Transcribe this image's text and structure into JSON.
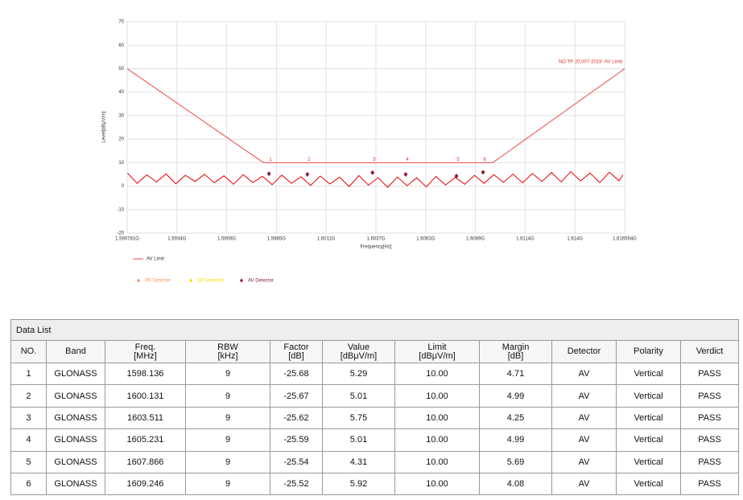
{
  "chart_data": {
    "type": "line",
    "ylabel": "Level[dBμV/m]",
    "xlabel": "Frequency[Hz]",
    "annotation": "NO TP 20.007-2019 -AV Limit",
    "xlim": [
      1.590781,
      1.616594
    ],
    "ylim": [
      -20,
      70
    ],
    "yticks": [
      -20,
      -10,
      0,
      10,
      20,
      30,
      40,
      50,
      60,
      70
    ],
    "xticks": [
      {
        "value": 1.590781,
        "label": "1.590781G"
      },
      {
        "value": 1.593362,
        "label": "1.5934G"
      },
      {
        "value": 1.595943,
        "label": "1.5959G"
      },
      {
        "value": 1.598525,
        "label": "1.5985G"
      },
      {
        "value": 1.601106,
        "label": "1.6011G"
      },
      {
        "value": 1.603688,
        "label": "1.6037G"
      },
      {
        "value": 1.606269,
        "label": "1.6063G"
      },
      {
        "value": 1.60885,
        "label": "1.6089G"
      },
      {
        "value": 1.611431,
        "label": "1.6114G"
      },
      {
        "value": 1.614013,
        "label": "1.614G"
      },
      {
        "value": 1.616594,
        "label": "1.616594G"
      }
    ],
    "grid": true,
    "limit": {
      "name": "AV Limit",
      "color": "#f04848",
      "x": [
        1.590781,
        1.59785,
        1.60975,
        1.616594
      ],
      "values": [
        50,
        10,
        10,
        50
      ]
    },
    "trace": {
      "color": "#e60000",
      "x": [
        1.5908,
        1.5913,
        1.5918,
        1.5923,
        1.5928,
        1.5933,
        1.5938,
        1.5943,
        1.5948,
        1.5953,
        1.5958,
        1.5963,
        1.5968,
        1.5973,
        1.5978,
        1.5983,
        1.5988,
        1.5993,
        1.5998,
        1.6003,
        1.6008,
        1.6013,
        1.6018,
        1.6023,
        1.6028,
        1.6033,
        1.6038,
        1.6043,
        1.6048,
        1.6053,
        1.6058,
        1.6063,
        1.6068,
        1.6073,
        1.6078,
        1.6083,
        1.6088,
        1.6093,
        1.6098,
        1.6103,
        1.6108,
        1.6113,
        1.6118,
        1.6123,
        1.6128,
        1.6133,
        1.6138,
        1.6143,
        1.6148,
        1.6153,
        1.6158,
        1.6163,
        1.6165
      ],
      "values": [
        5.5,
        1.2,
        4.8,
        1.8,
        5.2,
        1.0,
        4.6,
        2.0,
        5.0,
        1.4,
        4.4,
        0.8,
        4.9,
        1.5,
        4.2,
        0.6,
        4.7,
        1.2,
        4.0,
        0.3,
        4.3,
        0.9,
        3.8,
        -0.2,
        4.5,
        0.4,
        3.6,
        -0.5,
        3.9,
        0.2,
        3.5,
        -0.3,
        4.1,
        0.5,
        3.7,
        0.8,
        4.6,
        1.2,
        4.9,
        1.6,
        5.1,
        1.4,
        5.4,
        2.0,
        5.8,
        1.8,
        6.2,
        2.2,
        5.6,
        1.5,
        5.9,
        2.3,
        4.8
      ]
    },
    "detectors": [
      {
        "name": "PK Detector",
        "color": "#f7935c"
      },
      {
        "name": "QP Detector",
        "color": "#f2e000"
      },
      {
        "name": "AV Detector",
        "color": "#8b1e2e",
        "x": [
          1.598136,
          1.600131,
          1.603511,
          1.605231,
          1.607866,
          1.609246
        ],
        "values": [
          5.29,
          5.01,
          5.75,
          5.01,
          4.31,
          5.92
        ],
        "point_labels": [
          "1",
          "2",
          "3",
          "4",
          "5",
          "6"
        ]
      }
    ]
  },
  "table": {
    "title": "Data List",
    "header": [
      [
        "NO."
      ],
      [
        "Band"
      ],
      [
        "Freq.",
        "[MHz]"
      ],
      [
        "RBW",
        "[kHz]"
      ],
      [
        "Factor",
        "[dB]"
      ],
      [
        "Value",
        "[dBμV/m]"
      ],
      [
        "Limit",
        "[dBμV/m]"
      ],
      [
        "Margin",
        "[dB]"
      ],
      [
        "Detector"
      ],
      [
        "Polarity"
      ],
      [
        "Verdict"
      ]
    ],
    "rows": [
      [
        "1",
        "GLONASS",
        "1598.136",
        "9",
        "-25.68",
        "5.29",
        "10.00",
        "4.71",
        "AV",
        "Vertical",
        "PASS"
      ],
      [
        "2",
        "GLONASS",
        "1600.131",
        "9",
        "-25.67",
        "5.01",
        "10.00",
        "4.99",
        "AV",
        "Vertical",
        "PASS"
      ],
      [
        "3",
        "GLONASS",
        "1603.511",
        "9",
        "-25.62",
        "5.75",
        "10.00",
        "4.25",
        "AV",
        "Vertical",
        "PASS"
      ],
      [
        "4",
        "GLONASS",
        "1605.231",
        "9",
        "-25.59",
        "5.01",
        "10.00",
        "4.99",
        "AV",
        "Vertical",
        "PASS"
      ],
      [
        "5",
        "GLONASS",
        "1607.866",
        "9",
        "-25.54",
        "4.31",
        "10.00",
        "5.69",
        "AV",
        "Vertical",
        "PASS"
      ],
      [
        "6",
        "GLONASS",
        "1609.246",
        "9",
        "-25.52",
        "5.92",
        "10.00",
        "4.08",
        "AV",
        "Vertical",
        "PASS"
      ]
    ]
  }
}
